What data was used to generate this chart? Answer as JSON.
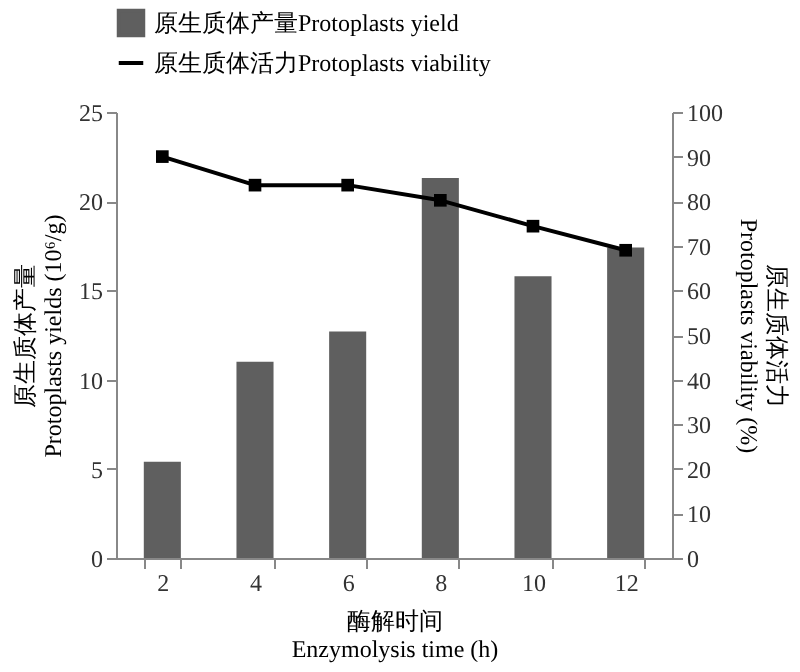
{
  "chart_data": {
    "type": "bar",
    "categories": [
      "2",
      "4",
      "6",
      "8",
      "10",
      "12"
    ],
    "xlabel": "酶解时间\nEnzymolysis time (h)",
    "ylabel": "原生质体产量\nProtoplasts yields (10⁶/g)",
    "y2label": "原生质体活力\nProtoplasts viability (%)",
    "series": [
      {
        "name": "原生质体产量Protoplasts yield",
        "color": "#5f5f5f",
        "values": [
          5.4,
          11.0,
          12.7,
          21.3,
          15.8,
          17.4
        ]
      },
      {
        "name": "原生质体活力Protoplasts viability",
        "type": "line",
        "axis": "y2",
        "color": "#000000",
        "marker": "square",
        "values": [
          90,
          83.6,
          83.6,
          80.2,
          74.4,
          69
        ]
      }
    ],
    "ylim": [
      0,
      25
    ],
    "yticks": [
      0,
      5,
      10,
      15,
      20,
      25
    ],
    "y2lim": [
      0,
      100
    ],
    "y2ticks": [
      0,
      10,
      20,
      30,
      40,
      50,
      60,
      70,
      80,
      90,
      100
    ],
    "grid": false,
    "legend": "top"
  }
}
